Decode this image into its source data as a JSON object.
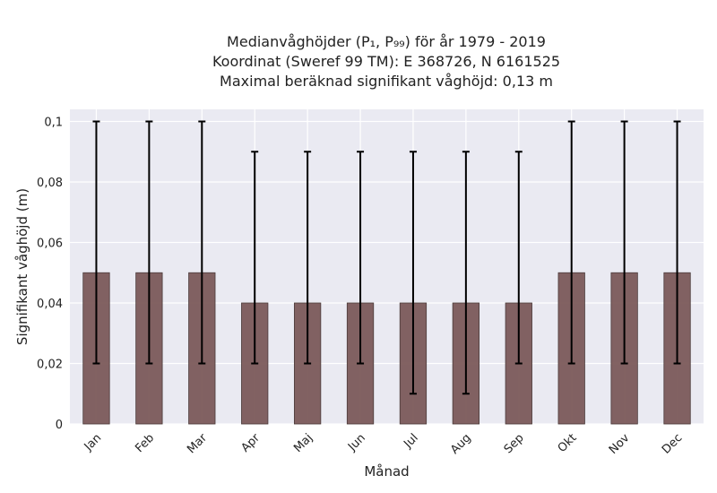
{
  "chart_data": {
    "type": "bar",
    "title_lines": [
      "Medianvåghöjder (P₁, P₉₉) för år 1979 - 2019",
      "Koordinat (Sweref 99 TM): E 368726, N 6161525",
      "Maximal beräknad signifikant våghöjd: 0,13 m"
    ],
    "xlabel": "Månad",
    "ylabel": "Signifikant våghöjd (m)",
    "categories": [
      "Jan",
      "Feb",
      "Mar",
      "Apr",
      "Maj",
      "Jun",
      "Jul",
      "Aug",
      "Sep",
      "Okt",
      "Nov",
      "Dec"
    ],
    "values": [
      0.05,
      0.05,
      0.05,
      0.04,
      0.04,
      0.04,
      0.04,
      0.04,
      0.04,
      0.05,
      0.05,
      0.05
    ],
    "p1": [
      0.02,
      0.02,
      0.02,
      0.02,
      0.02,
      0.02,
      0.01,
      0.01,
      0.02,
      0.02,
      0.02,
      0.02
    ],
    "p99": [
      0.1,
      0.1,
      0.1,
      0.09,
      0.09,
      0.09,
      0.09,
      0.09,
      0.09,
      0.1,
      0.1,
      0.1
    ],
    "ylim": [
      0,
      0.104
    ],
    "yticks": [
      0,
      0.02,
      0.04,
      0.06,
      0.08,
      0.1
    ],
    "ytick_labels": [
      "0",
      "0,02",
      "0,04",
      "0,06",
      "0,08",
      "0,1"
    ],
    "grid": true,
    "bar_color": "#7b5a5a",
    "plot_background": "#eaeaf2"
  }
}
